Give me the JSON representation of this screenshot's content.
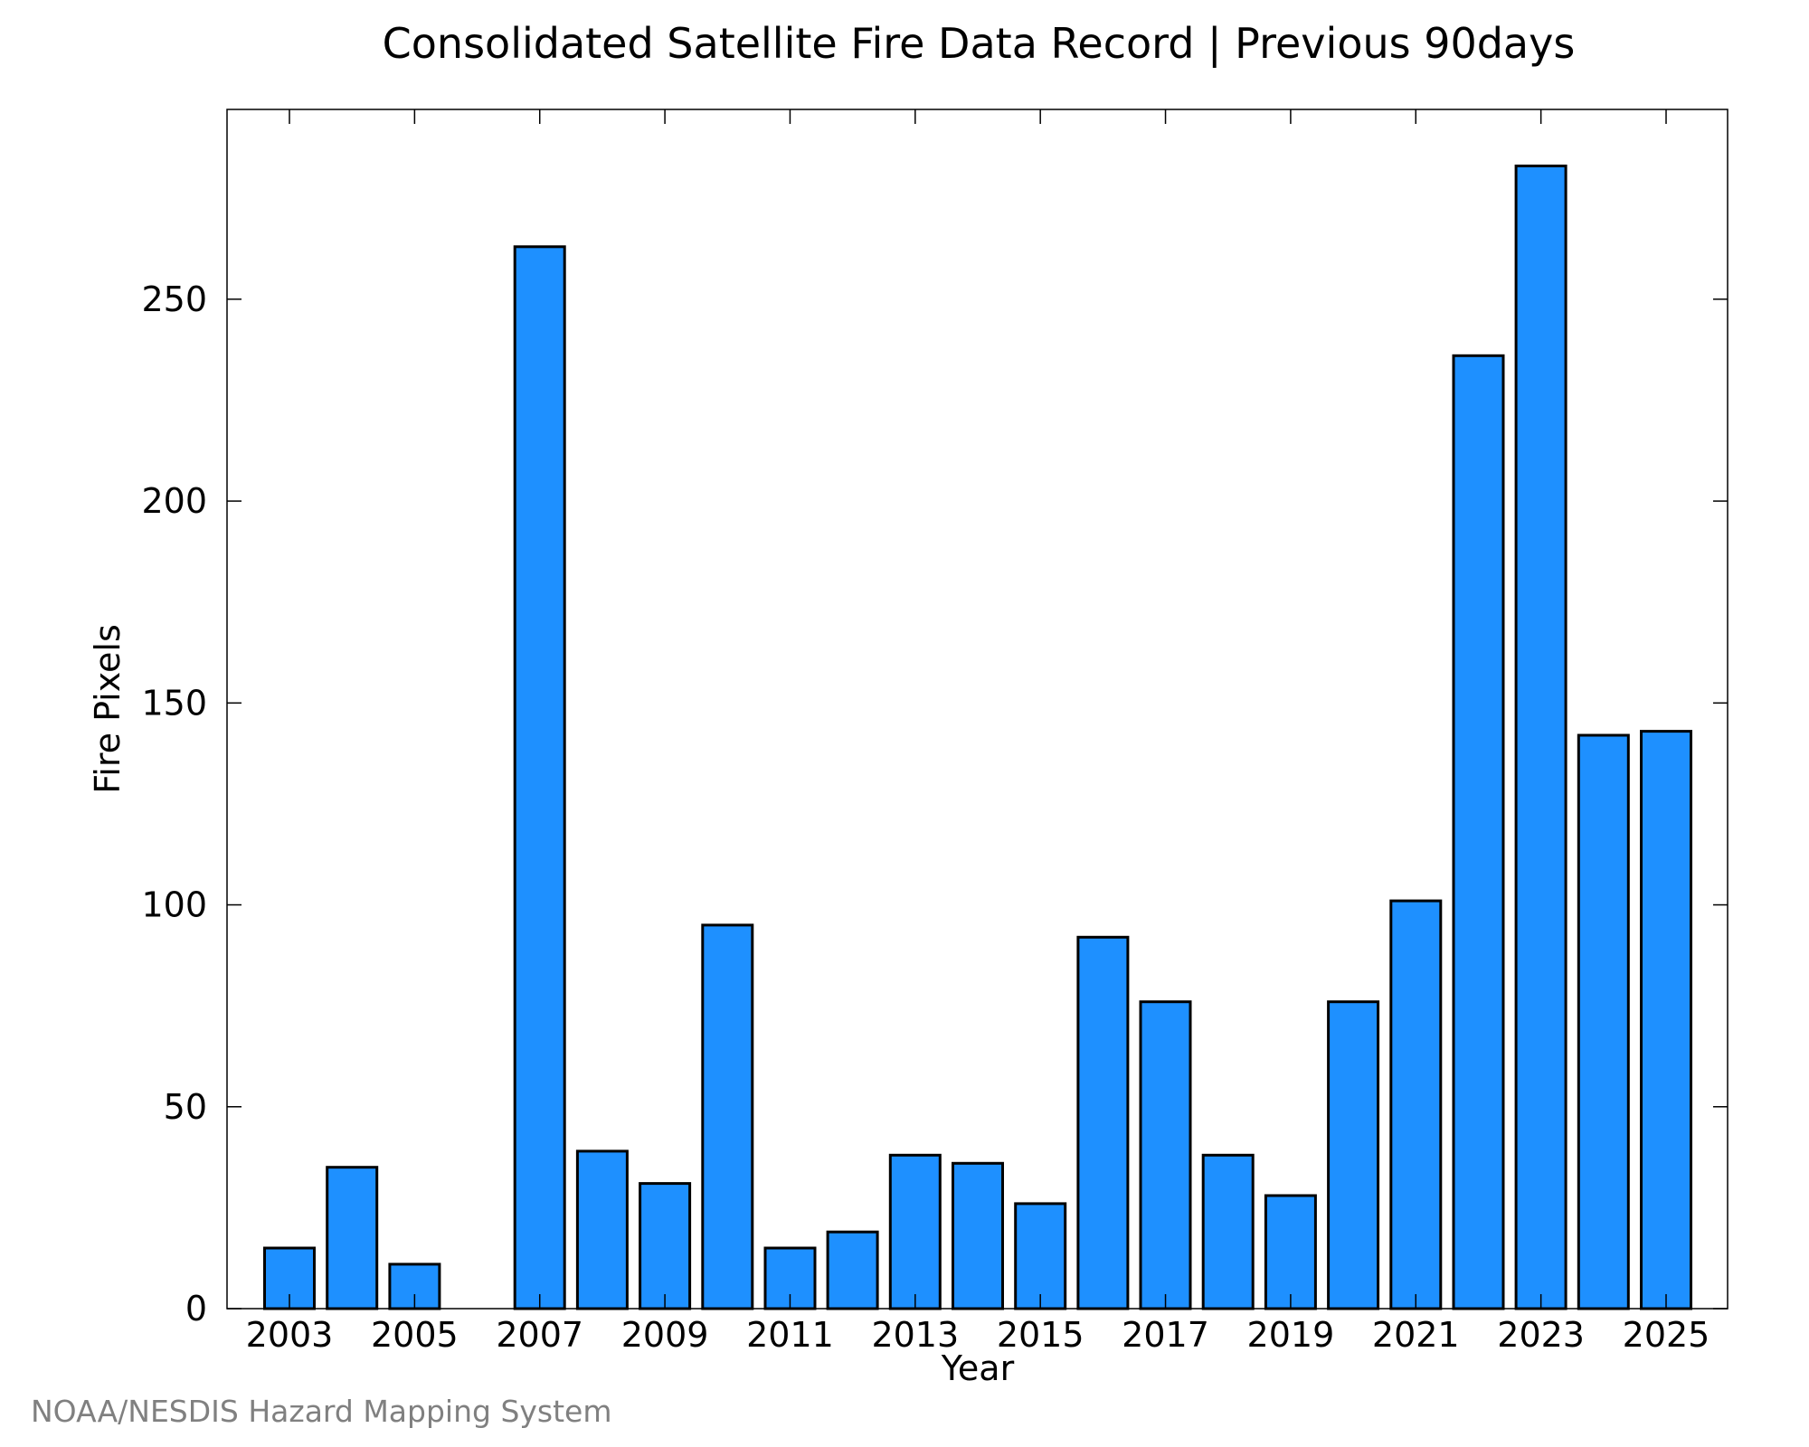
{
  "chart_data": {
    "type": "bar",
    "title": "Consolidated Satellite Fire Data Record | Previous 90days",
    "xlabel": "Year",
    "ylabel": "Fire Pixels",
    "categories": [
      "2003",
      "2004",
      "2005",
      "2006",
      "2007",
      "2008",
      "2009",
      "2010",
      "2011",
      "2012",
      "2013",
      "2014",
      "2015",
      "2016",
      "2017",
      "2018",
      "2019",
      "2020",
      "2021",
      "2022",
      "2023",
      "2024",
      "2025"
    ],
    "values": [
      15,
      35,
      11,
      0,
      263,
      39,
      31,
      95,
      15,
      19,
      38,
      36,
      26,
      92,
      76,
      38,
      28,
      76,
      101,
      236,
      283,
      142,
      143
    ],
    "x_tick_labels": [
      "2003",
      "2005",
      "2007",
      "2009",
      "2011",
      "2013",
      "2015",
      "2017",
      "2019",
      "2021",
      "2023",
      "2025"
    ],
    "y_ticks": [
      0,
      50,
      100,
      150,
      200,
      250
    ],
    "ylim": [
      0,
      297
    ],
    "grid": false,
    "bar_color": "#1e90ff",
    "bar_edge_color": "#000000"
  },
  "footer": {
    "credit": "NOAA/NESDIS Hazard Mapping System"
  }
}
